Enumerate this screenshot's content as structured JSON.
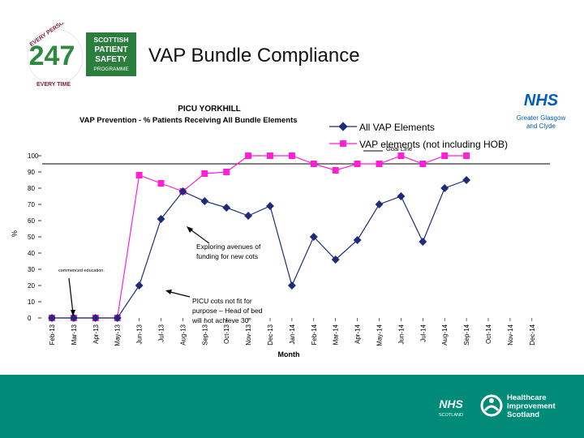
{
  "slide": {
    "title": "VAP Bundle Compliance"
  },
  "logos": {
    "spsp_top": "SCOTTISH",
    "spsp_line1": "PATIENT",
    "spsp_line2": "SAFETY",
    "spsp_line3": "PROGRAMME",
    "spsp_big": "247",
    "spsp_arc_top": "EVERY PERSON",
    "spsp_arc_bottom": "EVERY TIME",
    "nhs_ggc_mark": "NHS",
    "nhs_ggc_line1": "Greater Glasgow",
    "nhs_ggc_line2": "and Clyde",
    "nhs_scotland_mark": "NHS",
    "nhs_scotland_sub": "SCOTLAND",
    "his_line1": "Healthcare",
    "his_line2": "Improvement",
    "his_line3": "Scotland"
  },
  "colors": {
    "footer": "#008b79",
    "series_all": "#1f2a78",
    "series_nohob": "#ff1fd7",
    "nhs_blue": "#005eb8"
  },
  "chart_data": {
    "type": "line",
    "title": "PICU YORKHILL",
    "subtitle": "VAP Prevention - % Patients Receiving All Bundle Elements",
    "xlabel": "Month",
    "ylabel": "%",
    "ylim": [
      0,
      100
    ],
    "yticks": [
      0,
      10,
      20,
      30,
      40,
      50,
      60,
      70,
      80,
      90,
      100
    ],
    "categories": [
      "Feb-13",
      "Mar-13",
      "Apr-13",
      "May-13",
      "Jun-13",
      "Jul-13",
      "Aug-13",
      "Sep-13",
      "Oct-13",
      "Nov-13",
      "Dec-13",
      "Jan-14",
      "Feb-14",
      "Mar-14",
      "Apr-14",
      "May-14",
      "Jun-14",
      "Jul-14",
      "Aug-14",
      "Sep-14",
      "Oct-14",
      "Nov-14",
      "Dec-14"
    ],
    "tick_labels": [
      "Feb-13",
      "Mar-13",
      "Apr-13",
      "May-13",
      "Jun-13",
      "Jul-13",
      "Aug-13",
      "Sep-13",
      "Oct-13",
      "Nov-13",
      "Dec-13",
      "Jan-14",
      "Feb-14",
      "Mar-14",
      "Apr-14",
      "May-14",
      "Jun-14",
      "Jul-14",
      "Aug-14",
      "Sep-14",
      "Oct-14",
      "Nov-14",
      "Dec-14"
    ],
    "series": [
      {
        "name": "All VAP Elements",
        "values": [
          0,
          0,
          0,
          0,
          20,
          61,
          78,
          72,
          68,
          63,
          69,
          20,
          50,
          36,
          48,
          70,
          75,
          47,
          80,
          85,
          null,
          null,
          null
        ]
      },
      {
        "name": "VAP elements (not including HOB)",
        "values": [
          0,
          0,
          0,
          0,
          88,
          83,
          78,
          89,
          90,
          100,
          100,
          100,
          95,
          91,
          95,
          95,
          100,
          95,
          100,
          100,
          null,
          null,
          null
        ]
      }
    ],
    "goal_line": {
      "label": "Goal Line",
      "value": 95
    },
    "legend_position": "top-right",
    "annotations": [
      {
        "text": "Exploring avenues of funding for new cots",
        "line1": "Exploring avenues of",
        "line2": "funding for new cots"
      },
      {
        "text": "PICU cots not fit for purpose – Head of bed will not achieve 30°",
        "line1": "PICU cots not fit for",
        "line2": "purpose – Head of bed",
        "line3": "will not achieve 30°"
      },
      {
        "text": "commenced education."
      }
    ]
  }
}
